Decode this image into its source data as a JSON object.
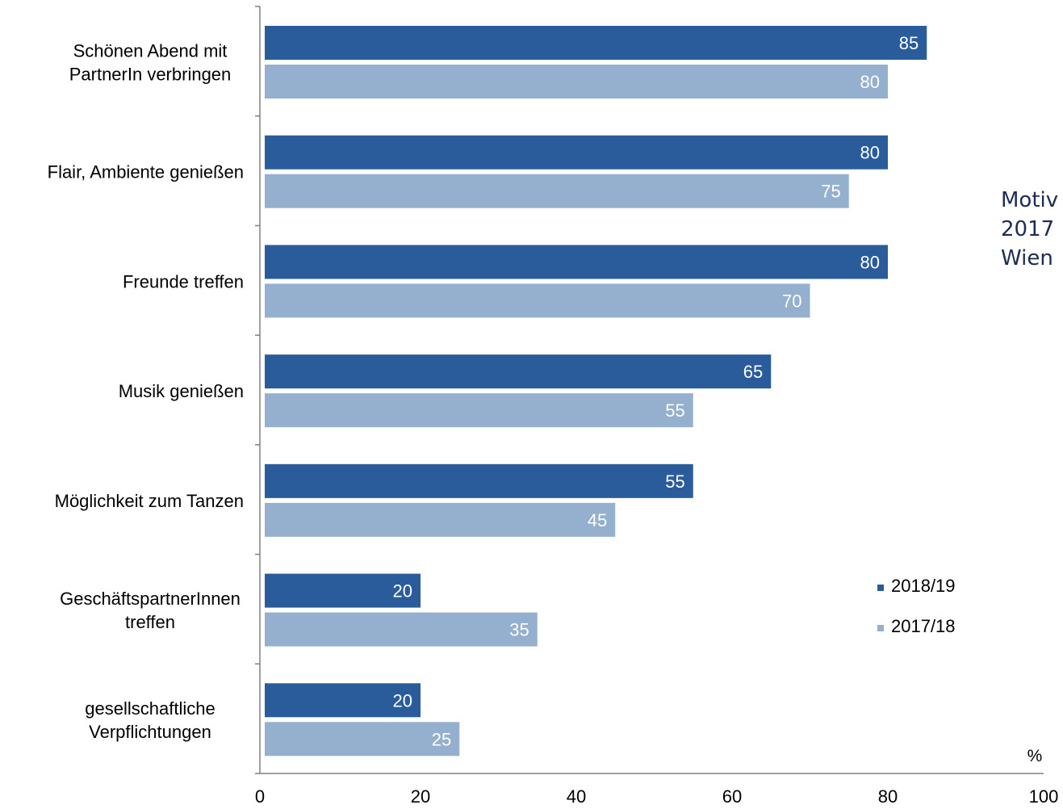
{
  "chart_data": {
    "type": "bar",
    "orientation": "horizontal",
    "categories": [
      [
        "Schönen Abend mit",
        "PartnerIn verbringen"
      ],
      [
        "Flair, Ambiente genießen"
      ],
      [
        "Freunde treffen"
      ],
      [
        "Musik genießen"
      ],
      [
        "Möglichkeit zum Tanzen"
      ],
      [
        "GeschäftspartnerInnen",
        "treffen"
      ],
      [
        "gesellschaftliche",
        "Verpflichtungen"
      ]
    ],
    "series": [
      {
        "name": "2018/19",
        "values": [
          85,
          80,
          80,
          65,
          55,
          20,
          20
        ],
        "color": "#2a5b9b"
      },
      {
        "name": "2017/18",
        "values": [
          80,
          75,
          70,
          55,
          45,
          35,
          25
        ],
        "color": "#95afcf"
      }
    ],
    "xlim": [
      0,
      100
    ],
    "xticks": [
      0,
      20,
      40,
      60,
      80,
      100
    ],
    "unit_label": "%",
    "legend_position": "right",
    "grid": false
  },
  "side_title": {
    "lines": [
      "Motiv",
      "2017",
      "Wien"
    ]
  }
}
